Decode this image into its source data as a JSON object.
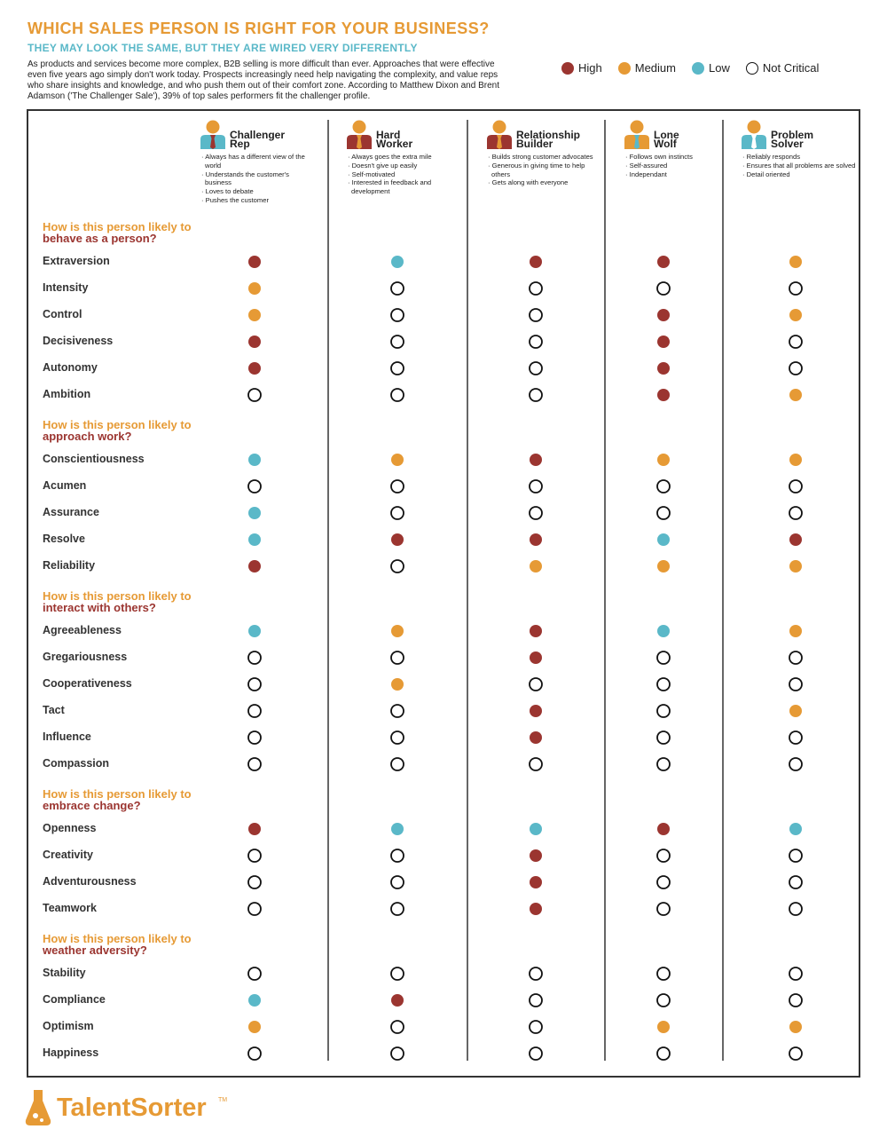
{
  "header": {
    "title": "WHICH SALES PERSON IS RIGHT FOR YOUR BUSINESS?",
    "subtitle": "THEY MAY LOOK THE SAME, BUT THEY ARE WIRED VERY DIFFERENTLY",
    "intro": "As products and services become more complex, B2B selling is more difficult than ever. Approaches that were effective even five years ago simply don't work today. Prospects increasingly need help navigating the complexity, and value reps who share insights and knowledge, and who push them out of their comfort zone. According to Matthew Dixon and Brent Adamson ('The Challenger Sale'), 39% of top sales performers fit the challenger profile."
  },
  "legend": [
    {
      "label": "High",
      "color": "#9b3530"
    },
    {
      "label": "Medium",
      "color": "#e69a35"
    },
    {
      "label": "Low",
      "color": "#5ab8c8"
    },
    {
      "label": "Not Critical",
      "color": "#ffffff"
    }
  ],
  "profiles": [
    {
      "name_lines": [
        "Challenger",
        "Rep"
      ],
      "traits": [
        "Always has a different view of the world",
        "Understands the customer's business",
        "Loves to debate",
        "Pushes the customer"
      ]
    },
    {
      "name_lines": [
        "Hard",
        "Worker"
      ],
      "traits": [
        "Always goes the extra mile",
        "Doesn't give up easily",
        "Self-motivated",
        "Interested in feedback and development"
      ]
    },
    {
      "name_lines": [
        "Relationship",
        "Builder"
      ],
      "traits": [
        "Builds strong customer advocates",
        "Generous in giving time to help others",
        "Gets along with everyone"
      ]
    },
    {
      "name_lines": [
        "Lone",
        "Wolf"
      ],
      "traits": [
        "Follows own instincts",
        "Self-assured",
        "Independant"
      ]
    },
    {
      "name_lines": [
        "Problem",
        "Solver"
      ],
      "traits": [
        "Reliably responds",
        "Ensures that all problems are solved",
        "Detail oriented"
      ]
    }
  ],
  "sections": [
    {
      "question_lead": "How is this person likely to",
      "question_focus": "behave as a person?",
      "rows": [
        {
          "label": "Extraversion",
          "ratings": [
            "High",
            "Low",
            "High",
            "High",
            "Medium"
          ]
        },
        {
          "label": "Intensity",
          "ratings": [
            "Medium",
            "Not Critical",
            "Not Critical",
            "Not Critical",
            "Not Critical"
          ]
        },
        {
          "label": "Control",
          "ratings": [
            "Medium",
            "Not Critical",
            "Not Critical",
            "High",
            "Medium"
          ]
        },
        {
          "label": "Decisiveness",
          "ratings": [
            "High",
            "Not Critical",
            "Not Critical",
            "High",
            "Not Critical"
          ]
        },
        {
          "label": "Autonomy",
          "ratings": [
            "High",
            "Not Critical",
            "Not Critical",
            "High",
            "Not Critical"
          ]
        },
        {
          "label": "Ambition",
          "ratings": [
            "Not Critical",
            "Not Critical",
            "Not Critical",
            "High",
            "Medium"
          ]
        }
      ]
    },
    {
      "question_lead": "How is this person likely to",
      "question_focus": "approach work?",
      "rows": [
        {
          "label": "Conscientiousness",
          "ratings": [
            "Low",
            "Medium",
            "High",
            "Medium",
            "Medium"
          ]
        },
        {
          "label": "Acumen",
          "ratings": [
            "Not Critical",
            "Not Critical",
            "Not Critical",
            "Not Critical",
            "Not Critical"
          ]
        },
        {
          "label": "Assurance",
          "ratings": [
            "Low",
            "Not Critical",
            "Not Critical",
            "Not Critical",
            "Not Critical"
          ]
        },
        {
          "label": "Resolve",
          "ratings": [
            "Low",
            "High",
            "High",
            "Low",
            "High"
          ]
        },
        {
          "label": "Reliability",
          "ratings": [
            "High",
            "Not Critical",
            "Medium",
            "Medium",
            "Medium"
          ]
        }
      ]
    },
    {
      "question_lead": "How is this person likely to",
      "question_focus": "interact with others?",
      "rows": [
        {
          "label": "Agreeableness",
          "ratings": [
            "Low",
            "Medium",
            "High",
            "Low",
            "Medium"
          ]
        },
        {
          "label": "Gregariousness",
          "ratings": [
            "Not Critical",
            "Not Critical",
            "High",
            "Not Critical",
            "Not Critical"
          ]
        },
        {
          "label": "Cooperativeness",
          "ratings": [
            "Not Critical",
            "Medium",
            "Not Critical",
            "Not Critical",
            "Not Critical"
          ]
        },
        {
          "label": "Tact",
          "ratings": [
            "Not Critical",
            "Not Critical",
            "High",
            "Not Critical",
            "Medium"
          ]
        },
        {
          "label": "Influence",
          "ratings": [
            "Not Critical",
            "Not Critical",
            "High",
            "Not Critical",
            "Not Critical"
          ]
        },
        {
          "label": "Compassion",
          "ratings": [
            "Not Critical",
            "Not Critical",
            "Not Critical",
            "Not Critical",
            "Not Critical"
          ]
        }
      ]
    },
    {
      "question_lead": "How is this person likely to",
      "question_focus": "embrace change?",
      "rows": [
        {
          "label": "Openness",
          "ratings": [
            "High",
            "Low",
            "Low",
            "High",
            "Low"
          ]
        },
        {
          "label": "Creativity",
          "ratings": [
            "Not Critical",
            "Not Critical",
            "High",
            "Not Critical",
            "Not Critical"
          ]
        },
        {
          "label": "Adventurousness",
          "ratings": [
            "Not Critical",
            "Not Critical",
            "High",
            "Not Critical",
            "Not Critical"
          ]
        },
        {
          "label": "Teamwork",
          "ratings": [
            "Not Critical",
            "Not Critical",
            "High",
            "Not Critical",
            "Not Critical"
          ]
        }
      ]
    },
    {
      "question_lead": "How is this person likely to",
      "question_focus": "weather adversity?",
      "rows": [
        {
          "label": "Stability",
          "ratings": [
            "Not Critical",
            "Not Critical",
            "Not Critical",
            "Not Critical",
            "Not Critical"
          ]
        },
        {
          "label": "Compliance",
          "ratings": [
            "Low",
            "High",
            "Not Critical",
            "Not Critical",
            "Not Critical"
          ]
        },
        {
          "label": "Optimism",
          "ratings": [
            "Medium",
            "Not Critical",
            "Not Critical",
            "Medium",
            "Medium"
          ]
        },
        {
          "label": "Happiness",
          "ratings": [
            "Not Critical",
            "Not Critical",
            "Not Critical",
            "Not Critical",
            "Not Critical"
          ]
        }
      ]
    }
  ],
  "footer": {
    "logo": "TalentSorter",
    "logo_mark": "TM"
  }
}
